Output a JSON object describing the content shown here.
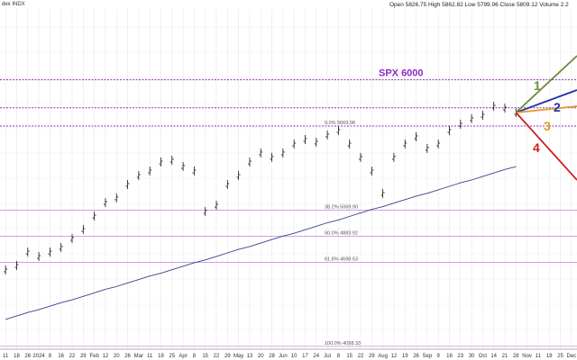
{
  "chart_data": {
    "type": "ohlc",
    "title": "dex INDX",
    "subtitle": "Open 5826.75 High 5862.82 Low 5799.96 Close 5809.12 Volume 2.2",
    "categories": [
      "11",
      "18",
      "26",
      "2024",
      "8",
      "16",
      "22",
      "29",
      "Feb",
      "12",
      "20",
      "26",
      "Mar",
      "11",
      "18",
      "25",
      "Apr",
      "8",
      "15",
      "22",
      "29",
      "May",
      "13",
      "20",
      "28",
      "Jun",
      "10",
      "17",
      "24",
      "Jul",
      "8",
      "15",
      "22",
      "29",
      "Aug",
      "12",
      "19",
      "26",
      "Sep",
      "9",
      "16",
      "23",
      "30",
      "Oct",
      "14",
      "21",
      "28",
      "Nov",
      "11",
      "18",
      "25",
      "Dec"
    ],
    "ylim": [
      4078,
      6569
    ],
    "grid": true,
    "series": [
      {
        "name": "SPX",
        "color": "#111111",
        "values": [
          4643,
          4675,
          4771,
          4739,
          4771,
          4804,
          4868,
          4932,
          5028,
          5124,
          5157,
          5253,
          5317,
          5349,
          5413,
          5426,
          5381,
          5349,
          5060,
          5105,
          5253,
          5317,
          5413,
          5478,
          5446,
          5478,
          5542,
          5574,
          5555,
          5606,
          5638,
          5542,
          5446,
          5349,
          5189,
          5446,
          5542,
          5593,
          5510,
          5542,
          5638,
          5683,
          5722,
          5747,
          5811,
          5798,
          5766,
          null,
          null,
          null,
          null,
          null
        ]
      },
      {
        "name": "MA",
        "color": "#3b3f8f",
        "values": [
          4290,
          4315,
          4340,
          4360,
          4385,
          4410,
          4430,
          4455,
          4480,
          4505,
          4525,
          4550,
          4575,
          4600,
          4620,
          4645,
          4670,
          4695,
          4715,
          4740,
          4765,
          4790,
          4810,
          4835,
          4860,
          4885,
          4905,
          4930,
          4955,
          4980,
          5000,
          5025,
          5050,
          5075,
          5095,
          5120,
          5145,
          5170,
          5190,
          5215,
          5240,
          5265,
          5285,
          5310,
          5335,
          5360,
          5380,
          null,
          null,
          null,
          null,
          null
        ]
      }
    ],
    "levels": [
      {
        "value": 6000,
        "label": "SPX 6000",
        "color": "#8e2bbf"
      },
      {
        "value": 5800,
        "color": "#8e2bbf"
      },
      {
        "value": 5669.98,
        "label": "0.0% 5669.98",
        "color": "#8e2bbf"
      },
      {
        "value": 5069.9,
        "label": "38.2% 5069.90",
        "color": "#c77dd6"
      },
      {
        "value": 4883.92,
        "label": "50.0% 4883.92",
        "color": "#c77dd6"
      },
      {
        "value": 4698.53,
        "label": "61.8% 4698.53",
        "color": "#c77dd6"
      },
      {
        "value": 4098.33,
        "label": "100.0% 4098.33",
        "color": "#c77dd6"
      }
    ],
    "projections": [
      {
        "label": "1",
        "color": "#6b8e3a",
        "start": 5766,
        "end": 6171
      },
      {
        "label": "2",
        "color": "#1f2fb0",
        "start": 5766,
        "end": 5927
      },
      {
        "label": "3",
        "color": "#e39b2a",
        "start": 5766,
        "end": 5811
      },
      {
        "label": "4",
        "color": "#cc1f1f",
        "start": 5766,
        "end": 5285
      }
    ]
  }
}
